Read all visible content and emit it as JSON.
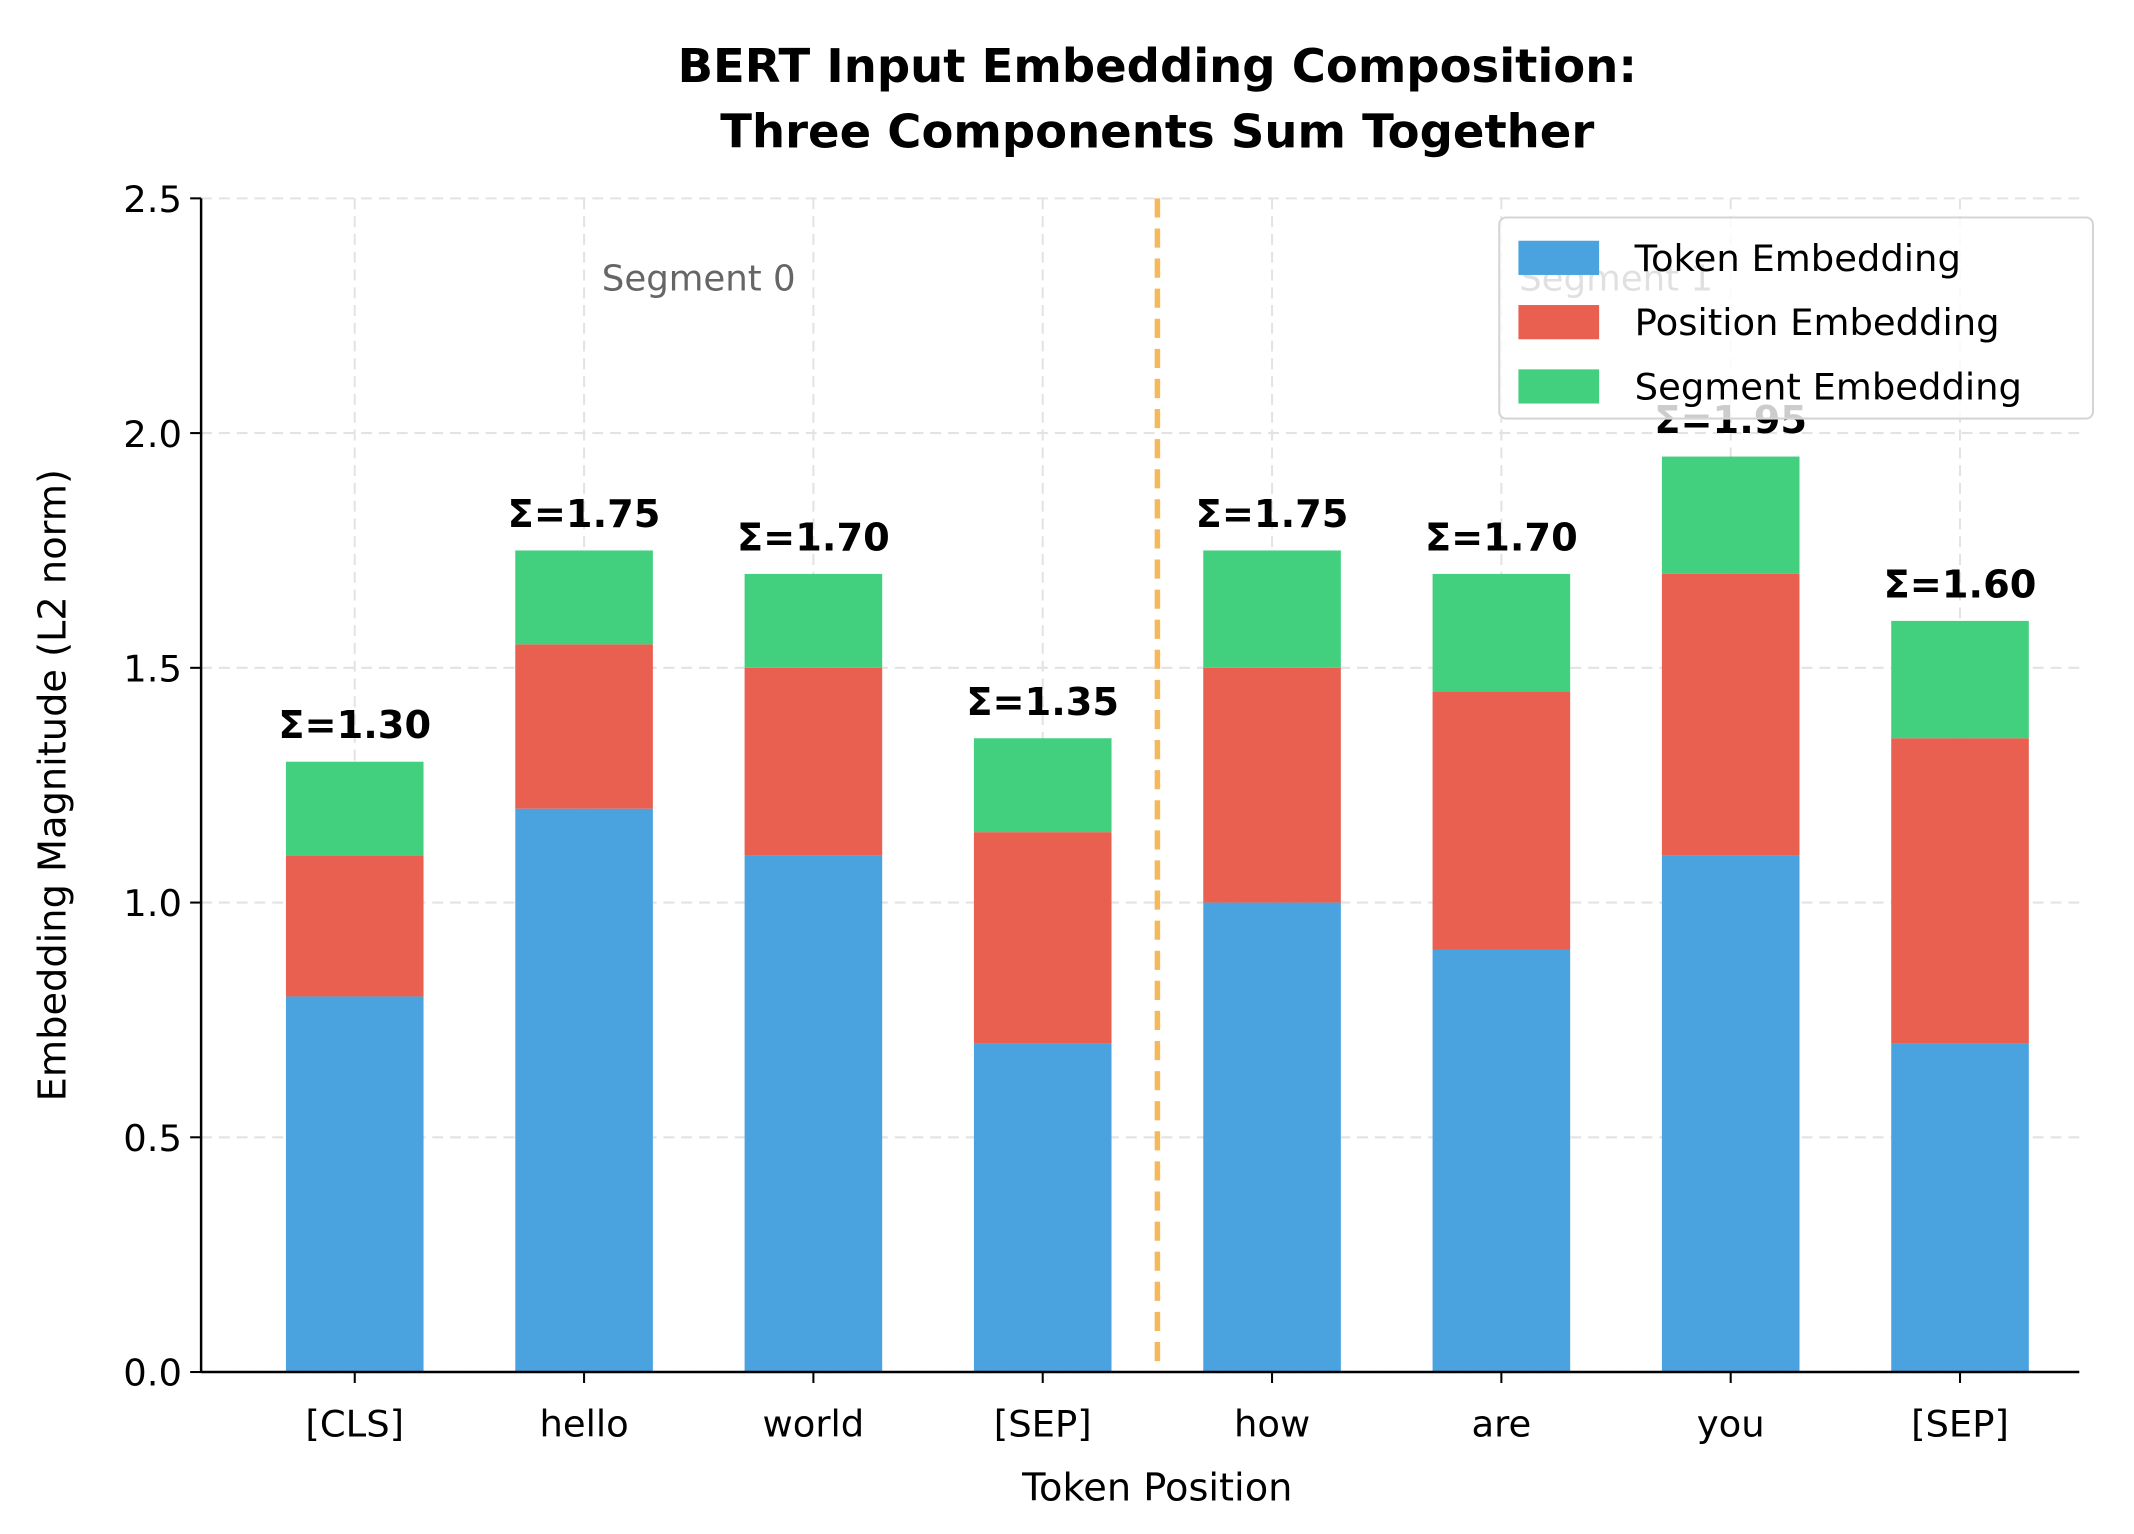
{
  "chart_data": {
    "type": "bar",
    "stacked": true,
    "title": "BERT Input Embedding Composition:\nThree Components Sum Together",
    "title_lines": [
      "BERT Input Embedding Composition:",
      "Three Components Sum Together"
    ],
    "xlabel": "Token Position",
    "ylabel": "Embedding Magnitude (L2 norm)",
    "categories": [
      "[CLS]",
      "hello",
      "world",
      "[SEP]",
      "how",
      "are",
      "you",
      "[SEP]"
    ],
    "series": [
      {
        "name": "Token Embedding",
        "color": "#4aa3df",
        "values": [
          0.8,
          1.2,
          1.1,
          0.7,
          1.0,
          0.9,
          1.1,
          0.7
        ]
      },
      {
        "name": "Position Embedding",
        "color": "#e95f50",
        "values": [
          0.3,
          0.35,
          0.4,
          0.45,
          0.5,
          0.55,
          0.6,
          0.65
        ]
      },
      {
        "name": "Segment Embedding",
        "color": "#43d07e",
        "values": [
          0.2,
          0.2,
          0.2,
          0.2,
          0.25,
          0.25,
          0.25,
          0.25
        ]
      }
    ],
    "total_labels": [
      "Σ=1.30",
      "Σ=1.75",
      "Σ=1.70",
      "Σ=1.35",
      "Σ=1.75",
      "Σ=1.70",
      "Σ=1.95",
      "Σ=1.60"
    ],
    "ylim": [
      0,
      2.5
    ],
    "yticks": [
      "0.0",
      "0.5",
      "1.0",
      "1.5",
      "2.0",
      "2.5"
    ],
    "grid": true,
    "legend_position": "top-right",
    "separator": {
      "x": 3.5,
      "color": "#f5b85a",
      "style": "dashed"
    },
    "annotations": [
      {
        "text": "Segment 0",
        "x": 1.5,
        "y": 2.33
      },
      {
        "text": "Segment 1",
        "x": 5.5,
        "y": 2.33
      }
    ]
  }
}
